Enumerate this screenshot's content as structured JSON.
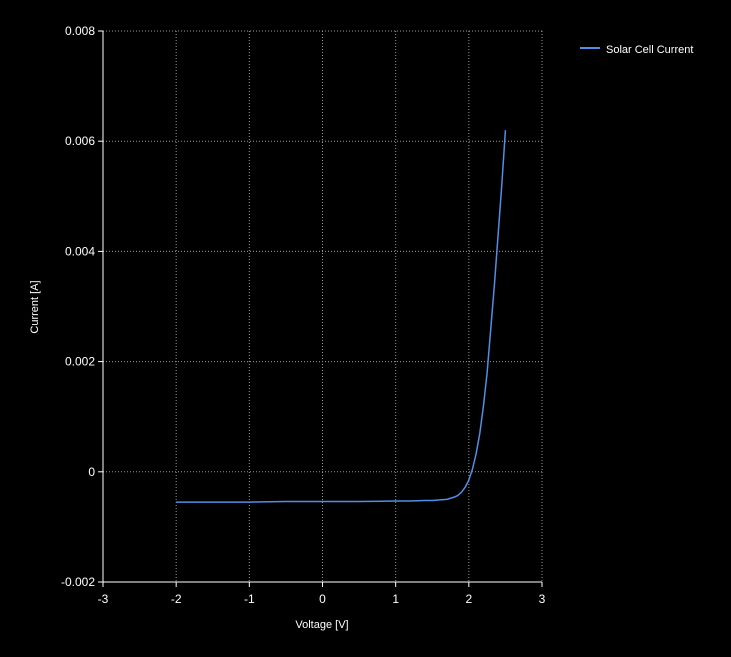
{
  "chart_data": {
    "type": "line",
    "title": "",
    "xlabel": "Voltage [V]",
    "ylabel": "Current [A]",
    "xlim": [
      -3,
      3
    ],
    "ylim": [
      -0.002,
      0.008
    ],
    "xticks": [
      -3,
      -2,
      -1,
      0,
      1,
      2,
      3
    ],
    "xtick_labels": [
      "-3",
      "-2",
      "-1",
      "0",
      "1",
      "2",
      "3"
    ],
    "yticks": [
      -0.002,
      0,
      0.002,
      0.004,
      0.006,
      0.008
    ],
    "ytick_labels": [
      "-0.002",
      "0",
      "0.002",
      "0.004",
      "0.006",
      "0.008"
    ],
    "grid": true,
    "legend_position": "top-right",
    "background": "#000000",
    "series": [
      {
        "name": "Solar Cell Current",
        "color": "#4f8fe6",
        "x": [
          -2.0,
          -1.5,
          -1.0,
          -0.5,
          0.0,
          0.5,
          1.0,
          1.2,
          1.4,
          1.5,
          1.6,
          1.7,
          1.75,
          1.8,
          1.85,
          1.9,
          1.95,
          2.0,
          2.05,
          2.1,
          2.15,
          2.2,
          2.25,
          2.3,
          2.35,
          2.4,
          2.45,
          2.5
        ],
        "y": [
          -0.00055,
          -0.00055,
          -0.00055,
          -0.00054,
          -0.00054,
          -0.00054,
          -0.00053,
          -0.00053,
          -0.00052,
          -0.00052,
          -0.00051,
          -0.0005,
          -0.00048,
          -0.00046,
          -0.00043,
          -0.00037,
          -0.00028,
          -0.00015,
          5e-05,
          0.00033,
          0.0007,
          0.0012,
          0.0018,
          0.0026,
          0.0034,
          0.0043,
          0.0052,
          0.0062
        ]
      }
    ]
  }
}
